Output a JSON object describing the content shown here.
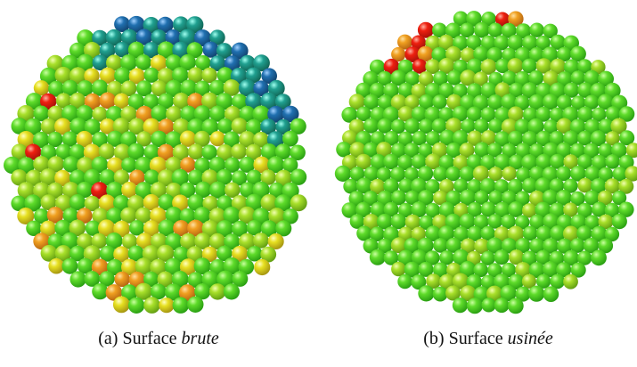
{
  "panels": [
    {
      "label": "(a) Surface",
      "emphasis": "brute"
    },
    {
      "label": "(b) Surface",
      "emphasis": "usinée"
    }
  ]
}
